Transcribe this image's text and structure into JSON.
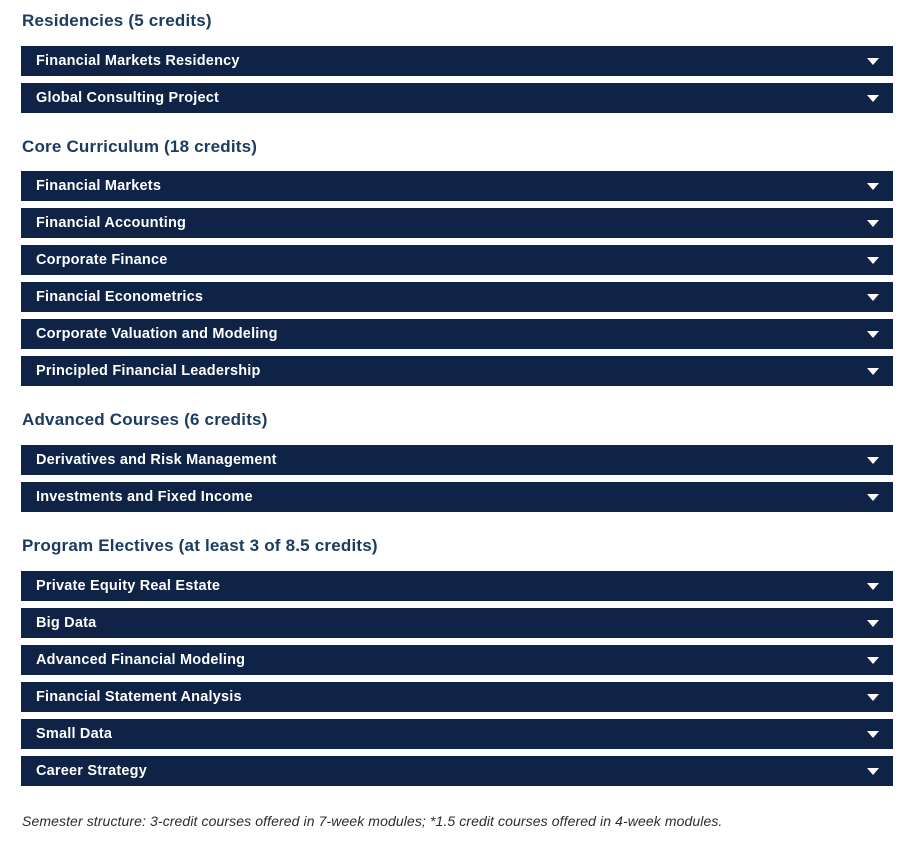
{
  "page": {
    "bar_color": "#0e2345",
    "heading_color": "#1b3c60",
    "bar_text_color": "#ffffff"
  },
  "sections": [
    {
      "heading": "Residencies (5 credits)",
      "items": [
        "Financial Markets Residency",
        "Global Consulting Project"
      ]
    },
    {
      "heading": "Core Curriculum (18 credits)",
      "items": [
        "Financial Markets",
        "Financial Accounting",
        "Corporate Finance",
        "Financial Econometrics",
        "Corporate Valuation and Modeling",
        "Principled Financial Leadership"
      ]
    },
    {
      "heading": "Advanced Courses (6 credits)",
      "items": [
        "Derivatives and Risk Management",
        "Investments and Fixed Income"
      ]
    },
    {
      "heading": "Program Electives (at least 3 of 8.5 credits)",
      "items": [
        "Private Equity Real Estate",
        "Big Data",
        "Advanced Financial Modeling",
        "Financial Statement Analysis",
        "Small Data",
        "Career Strategy"
      ]
    }
  ],
  "footer": {
    "note": "Semester structure: 3-credit courses offered in 7-week modules; *1.5 credit courses offered in 4-week modules."
  }
}
